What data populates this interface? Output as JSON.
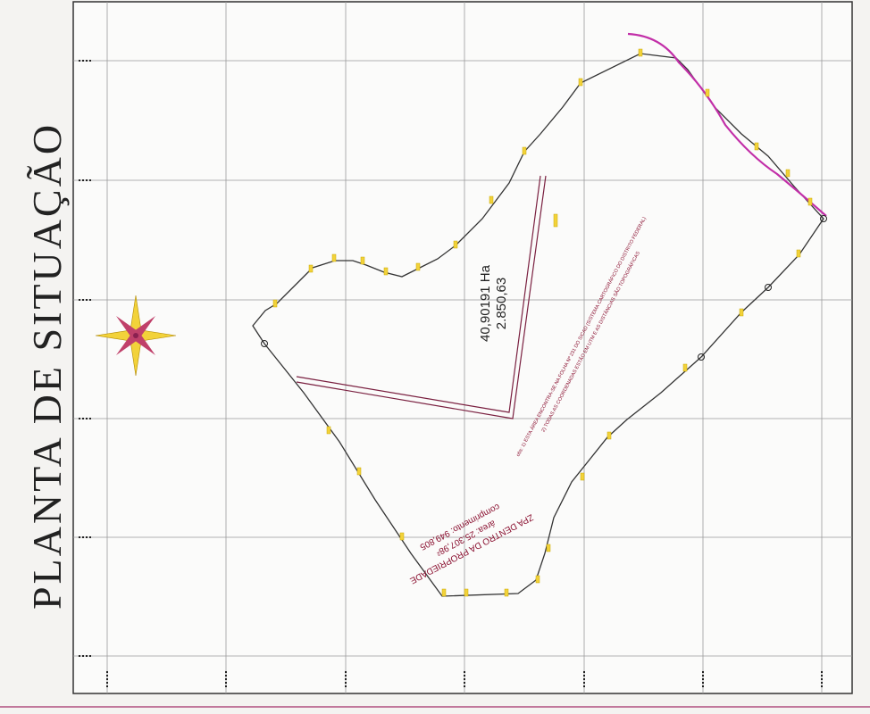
{
  "title": "PLANTA DE SITUAÇÃO",
  "area": {
    "hectares": "40,90191 Ha",
    "perimeter": "2.850,63"
  },
  "zpa": {
    "title": "ZPA DENTRO DA PROPRIEDADE",
    "area": "área: 25.307,98²",
    "length": "comprimento: 949,805"
  },
  "notes": [
    "obs: 1) ESTA ÁREA ENCONTRA-SE NA FOLHA Nº 231 DO SICAD (SISTEMA CARTOGRÁFICO DO DISTRITO FEDERAL)",
    "2) TODAS AS COORDENADAS ESTÃO EM UTM E AS DISTÂNCIAS SÃO TOPOGRÁFICAS"
  ]
}
